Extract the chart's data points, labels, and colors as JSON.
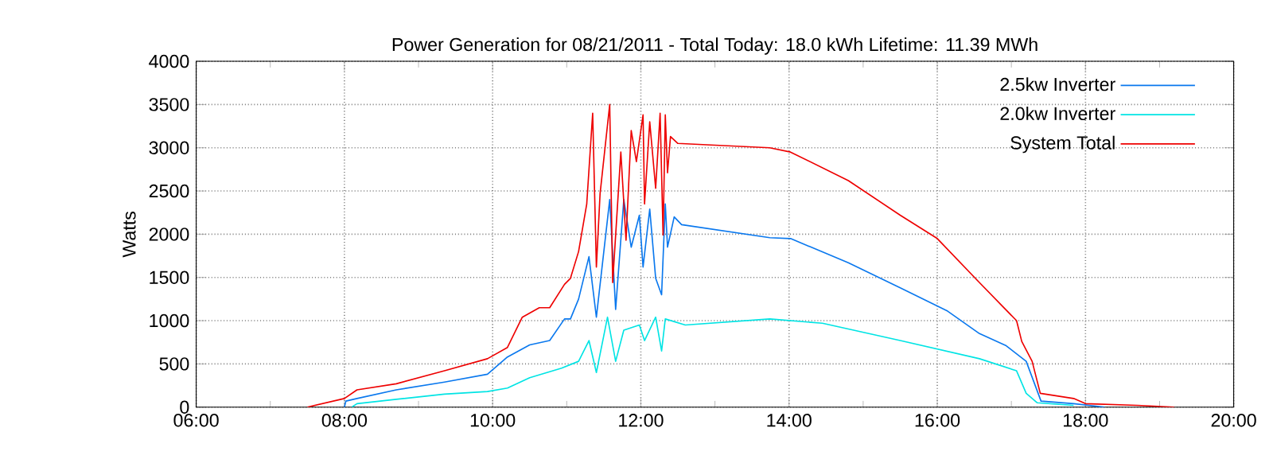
{
  "chart_data": {
    "type": "line",
    "title": "Power Generation for 08/21/2011 - Total Today: 18.0 kWh   Lifetime: 11.39 MWh",
    "ylabel": "Watts",
    "xlim": [
      6,
      20
    ],
    "xticks": [
      {
        "value": 6,
        "label": "06:00"
      },
      {
        "value": 8,
        "label": "08:00"
      },
      {
        "value": 10,
        "label": "10:00"
      },
      {
        "value": 12,
        "label": "12:00"
      },
      {
        "value": 14,
        "label": "14:00"
      },
      {
        "value": 16,
        "label": "16:00"
      },
      {
        "value": 18,
        "label": "18:00"
      },
      {
        "value": 20,
        "label": "20:00"
      }
    ],
    "ylim": [
      0,
      4000
    ],
    "yticks": [
      0,
      500,
      1000,
      1500,
      2000,
      2500,
      3000,
      3500,
      4000
    ],
    "grid": true,
    "legend": "top right",
    "marker": "none",
    "line_style": "solid",
    "series": [
      {
        "name": "2.5kw Inverter",
        "color": "#0a78ee",
        "x": [
          8.0,
          8.02,
          8.17,
          8.7,
          9.35,
          9.93,
          10.2,
          10.5,
          10.77,
          10.97,
          11.05,
          11.16,
          11.3,
          11.4,
          11.58,
          11.66,
          11.77,
          11.87,
          11.98,
          12.03,
          12.12,
          12.2,
          12.28,
          12.33,
          12.36,
          12.45,
          12.55,
          13.74,
          14.02,
          14.8,
          15.5,
          16.14,
          16.57,
          16.93,
          17.2,
          17.4,
          17.84,
          18.26
        ],
        "values": [
          0,
          70,
          100,
          200,
          290,
          380,
          580,
          720,
          770,
          1020,
          1020,
          1250,
          1740,
          1040,
          2400,
          1130,
          2400,
          1850,
          2220,
          1620,
          2290,
          1490,
          1300,
          2350,
          1850,
          2200,
          2110,
          1960,
          1950,
          1670,
          1380,
          1110,
          850,
          710,
          530,
          70,
          40,
          0
        ]
      },
      {
        "name": "2.0kw Inverter",
        "color": "#00e4e4",
        "x": [
          8.1,
          8.17,
          8.7,
          9.35,
          9.93,
          10.2,
          10.5,
          10.93,
          11.16,
          11.3,
          11.4,
          11.55,
          11.66,
          11.77,
          11.98,
          12.05,
          12.2,
          12.28,
          12.33,
          12.6,
          13.74,
          14.45,
          15.5,
          16.57,
          17.07,
          17.2,
          17.35,
          17.84
        ],
        "values": [
          0,
          40,
          90,
          150,
          180,
          220,
          340,
          450,
          530,
          770,
          400,
          1040,
          530,
          890,
          950,
          770,
          1040,
          650,
          1020,
          950,
          1020,
          970,
          770,
          560,
          420,
          160,
          50,
          20
        ]
      },
      {
        "name": "System Total",
        "color": "#ee0000",
        "x": [
          7.5,
          8.0,
          8.17,
          8.7,
          9.35,
          9.93,
          10.2,
          10.4,
          10.63,
          10.77,
          10.97,
          11.05,
          11.16,
          11.27,
          11.35,
          11.4,
          11.45,
          11.58,
          11.62,
          11.73,
          11.8,
          11.87,
          11.94,
          12.03,
          12.05,
          12.12,
          12.2,
          12.26,
          12.3,
          12.33,
          12.36,
          12.4,
          12.5,
          13.74,
          14.02,
          14.8,
          15.5,
          16.0,
          16.57,
          17.07,
          17.14,
          17.28,
          17.39,
          17.84,
          18.0,
          18.7,
          19.2
        ],
        "values": [
          0,
          100,
          200,
          270,
          420,
          560,
          690,
          1040,
          1150,
          1150,
          1420,
          1490,
          1800,
          2350,
          3400,
          1620,
          2470,
          3500,
          1440,
          2950,
          1930,
          3200,
          2840,
          3380,
          2350,
          3300,
          2530,
          3400,
          1990,
          3380,
          2710,
          3130,
          3050,
          3000,
          2950,
          2620,
          2220,
          1950,
          1440,
          1000,
          760,
          530,
          160,
          100,
          40,
          20,
          0
        ]
      }
    ]
  }
}
